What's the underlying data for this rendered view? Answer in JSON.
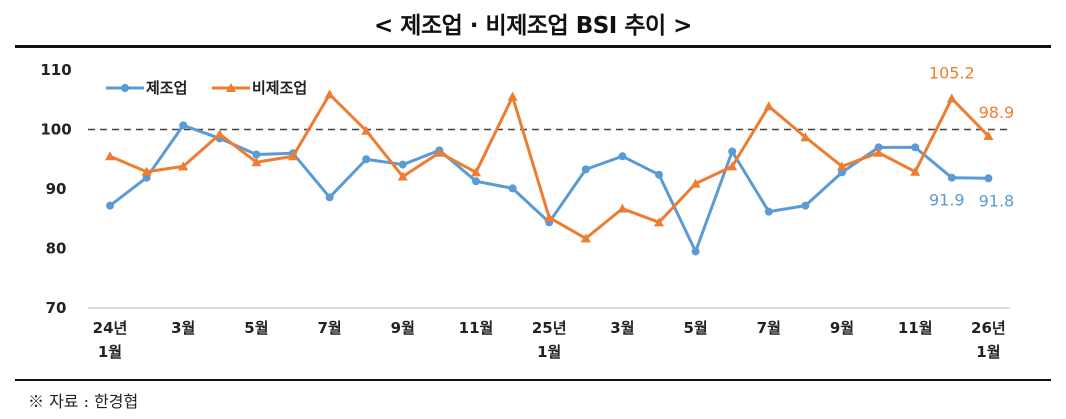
{
  "chart_data": {
    "type": "line",
    "title": "< 제조업 · 비제조업 BSI 추이 >",
    "xlabel": "",
    "ylabel": "",
    "ylim": [
      70,
      110
    ],
    "yticks": [
      "70",
      "80",
      "90",
      "100",
      "110"
    ],
    "reference_line": 100,
    "legend_position": "top-left",
    "x_tick_labels": [
      [
        "24년",
        "1월"
      ],
      [
        "3월"
      ],
      [
        "5월"
      ],
      [
        "7월"
      ],
      [
        "9월"
      ],
      [
        "11월"
      ],
      [
        "25년",
        "1월"
      ],
      [
        "3월"
      ],
      [
        "5월"
      ],
      [
        "7월"
      ],
      [
        "9월"
      ],
      [
        "11월"
      ],
      [
        "26년",
        "1월"
      ]
    ],
    "series": [
      {
        "name": "제조업",
        "color": "#5b9bd5",
        "marker": "circle",
        "values": [
          87.2,
          91.9,
          100.7,
          98.5,
          95.8,
          96.0,
          88.6,
          95.0,
          94.1,
          96.5,
          91.3,
          90.1,
          84.4,
          93.3,
          95.5,
          92.4,
          79.5,
          96.3,
          86.2,
          87.2,
          92.8,
          97.0,
          97.0,
          91.9,
          91.8
        ]
      },
      {
        "name": "비제조업",
        "color": "#ed7d31",
        "marker": "triangle",
        "values": [
          95.5,
          92.9,
          93.8,
          99.2,
          94.5,
          95.5,
          105.9,
          99.8,
          92.1,
          96.1,
          92.8,
          105.5,
          85.2,
          81.7,
          86.7,
          84.4,
          90.9,
          93.8,
          103.9,
          98.7,
          93.8,
          96.1,
          92.9,
          105.2,
          98.9
        ]
      }
    ],
    "annotations": [
      {
        "series": 1,
        "index": 23,
        "text": "105.2"
      },
      {
        "series": 1,
        "index": 24,
        "text": "98.9"
      },
      {
        "series": 0,
        "index": 23,
        "text": "91.9"
      },
      {
        "series": 0,
        "index": 24,
        "text": "91.8"
      }
    ]
  },
  "source": "※ 자료 : 한경협"
}
